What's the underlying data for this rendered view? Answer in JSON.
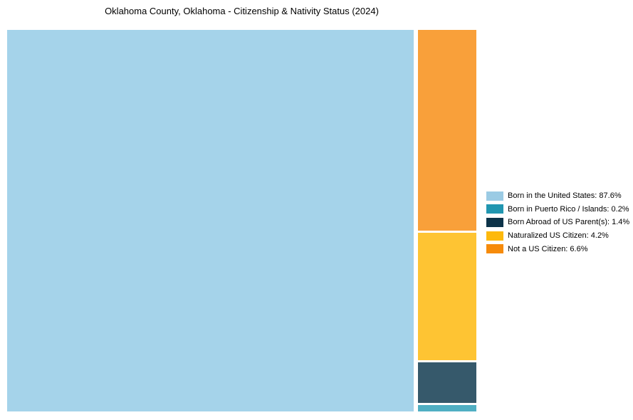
{
  "chart_data": {
    "type": "treemap",
    "title": "Oklahoma County, Oklahoma - Citizenship & Nativity Status (2024)",
    "unit": "%",
    "categories": [
      "Born in the United States",
      "Born in Puerto Rico / Islands",
      "Born Abroad of US Parent(s)",
      "Naturalized US Citizen",
      "Not a US Citizen"
    ],
    "values": [
      87.6,
      0.2,
      1.4,
      4.2,
      6.6
    ],
    "cell_colors": [
      "#A5D3EA",
      "#50AFC3",
      "#36596B",
      "#FEC433",
      "#F9A03A"
    ],
    "legend_colors": [
      "#9BCBE4",
      "#2196B0",
      "#0D3349",
      "#FDB90D",
      "#F68B0B"
    ],
    "legend_position": "right",
    "layout_hint": "largest value fills left block; remaining values stacked top-to-bottom (descending) in right column",
    "background": "#FFFFFF"
  },
  "legend": {
    "items": [
      {
        "label": "Born in the United States: 87.6%",
        "color": "#9BCBE4"
      },
      {
        "label": "Born in Puerto Rico / Islands: 0.2%",
        "color": "#2196B0"
      },
      {
        "label": "Born Abroad of US Parent(s): 1.4%",
        "color": "#0D3349"
      },
      {
        "label": "Naturalized US Citizen: 4.2%",
        "color": "#FDB90D"
      },
      {
        "label": "Not a US Citizen: 6.6%",
        "color": "#F68B0B"
      }
    ]
  }
}
